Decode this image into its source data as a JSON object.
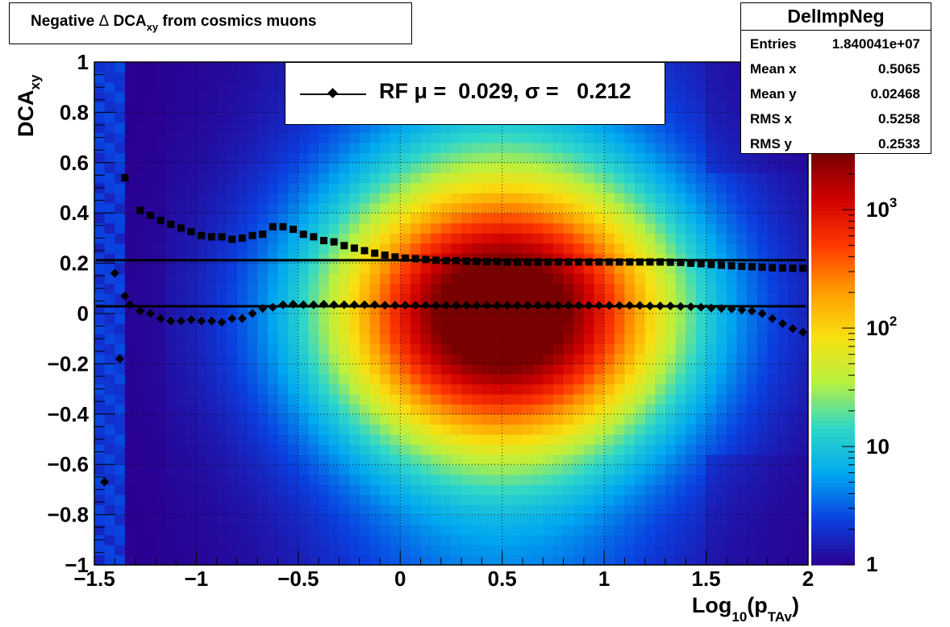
{
  "title": {
    "prefix": "Negative ",
    "delta": "Δ",
    "mid": " DCA",
    "sub": "xy",
    "suffix": " from cosmics muons"
  },
  "stats": {
    "name": "DelImpNeg",
    "rows": [
      {
        "label": "Entries",
        "value": "1.840041e+07"
      },
      {
        "label": "Mean x",
        "value": "0.5065"
      },
      {
        "label": "Mean y",
        "value": "0.02468"
      },
      {
        "label": "RMS x",
        "value": "0.5258"
      },
      {
        "label": "RMS y",
        "value": "0.2533"
      }
    ]
  },
  "legend": {
    "text": "RF μ =  0.029, σ =   0.212"
  },
  "axes": {
    "xlabel_main": "Log",
    "xlabel_sub1": "10",
    "xlabel_paren": "(p",
    "xlabel_sub2": "TAv",
    "xlabel_close": ")",
    "ylabel_main": "DCA",
    "ylabel_sub": "xy"
  },
  "chart_data": {
    "type": "heatmap",
    "xlim": [
      -1.5,
      2
    ],
    "ylim": [
      -1,
      1
    ],
    "xticks": [
      -1.5,
      -1,
      -0.5,
      0,
      0.5,
      1,
      1.5,
      2
    ],
    "xtick_labels": [
      "−1.5",
      "−1",
      "−0.5",
      "0",
      "0.5",
      "1",
      "1.5",
      "2"
    ],
    "yticks": [
      -1,
      -0.8,
      -0.6,
      -0.4,
      -0.2,
      0,
      0.2,
      0.4,
      0.6,
      0.8,
      1
    ],
    "ytick_labels": [
      "−1",
      "−0.8",
      "−0.6",
      "−0.4",
      "−0.2",
      "0",
      "0.2",
      "0.4",
      "0.6",
      "0.8",
      "1"
    ],
    "grid": true,
    "colorbar": {
      "scale": "log",
      "range": [
        1,
        3000
      ],
      "tick_labels": [
        "1",
        "10",
        "10²",
        "10³"
      ],
      "tick_values": [
        1,
        10,
        100,
        1000
      ],
      "colors": [
        "#2a0090",
        "#0a40e0",
        "#00a8f0",
        "#30d8c8",
        "#b8f040",
        "#f8e010",
        "#ff9a00",
        "#ff3800",
        "#d00000",
        "#780000"
      ]
    },
    "density_peak": {
      "x": 0.5,
      "y": 0.0
    },
    "mean_series": {
      "name": "RF",
      "marker": "diamond",
      "x": [
        -1.45,
        -1.4,
        -1.375,
        -1.35,
        -1.325,
        -1.275,
        -1.225,
        -1.175,
        -1.125,
        -1.075,
        -1.025,
        -0.975,
        -0.925,
        -0.875,
        -0.825,
        -0.775,
        -0.725,
        -0.675,
        -0.625,
        -0.575,
        -0.525,
        -0.475,
        -0.425,
        -0.375,
        -0.325,
        -0.275,
        -0.225,
        -0.175,
        -0.125,
        -0.075,
        -0.025,
        0.025,
        0.075,
        0.125,
        0.175,
        0.225,
        0.275,
        0.325,
        0.375,
        0.425,
        0.475,
        0.525,
        0.575,
        0.625,
        0.675,
        0.725,
        0.775,
        0.825,
        0.875,
        0.925,
        0.975,
        1.025,
        1.075,
        1.125,
        1.175,
        1.225,
        1.275,
        1.325,
        1.375,
        1.425,
        1.475,
        1.525,
        1.575,
        1.625,
        1.675,
        1.725,
        1.775,
        1.825,
        1.875,
        1.925,
        1.975
      ],
      "y": [
        -0.67,
        0.16,
        -0.18,
        0.07,
        0.035,
        0.01,
        0.0,
        -0.02,
        -0.03,
        -0.03,
        -0.025,
        -0.03,
        -0.03,
        -0.035,
        -0.02,
        -0.02,
        0.0,
        0.02,
        0.025,
        0.035,
        0.037,
        0.035,
        0.035,
        0.037,
        0.035,
        0.035,
        0.035,
        0.035,
        0.035,
        0.033,
        0.033,
        0.033,
        0.033,
        0.033,
        0.032,
        0.032,
        0.032,
        0.032,
        0.032,
        0.032,
        0.032,
        0.032,
        0.032,
        0.032,
        0.032,
        0.032,
        0.032,
        0.032,
        0.032,
        0.032,
        0.032,
        0.032,
        0.032,
        0.032,
        0.032,
        0.03,
        0.03,
        0.03,
        0.028,
        0.027,
        0.025,
        0.022,
        0.02,
        0.018,
        0.015,
        0.01,
        0.0,
        -0.02,
        -0.04,
        -0.06,
        -0.075
      ]
    },
    "sigma_series": {
      "marker": "square",
      "x": [
        -1.35,
        -1.275,
        -1.225,
        -1.175,
        -1.125,
        -1.075,
        -1.025,
        -0.975,
        -0.925,
        -0.875,
        -0.825,
        -0.775,
        -0.725,
        -0.675,
        -0.625,
        -0.575,
        -0.525,
        -0.475,
        -0.425,
        -0.375,
        -0.325,
        -0.275,
        -0.225,
        -0.175,
        -0.125,
        -0.075,
        -0.025,
        0.025,
        0.075,
        0.125,
        0.175,
        0.225,
        0.275,
        0.325,
        0.375,
        0.425,
        0.475,
        0.525,
        0.575,
        0.625,
        0.675,
        0.725,
        0.775,
        0.825,
        0.875,
        0.925,
        0.975,
        1.025,
        1.075,
        1.125,
        1.175,
        1.225,
        1.275,
        1.325,
        1.375,
        1.425,
        1.475,
        1.525,
        1.575,
        1.625,
        1.675,
        1.725,
        1.775,
        1.825,
        1.875,
        1.925,
        1.975
      ],
      "y": [
        0.54,
        0.41,
        0.39,
        0.37,
        0.355,
        0.34,
        0.325,
        0.31,
        0.305,
        0.305,
        0.295,
        0.3,
        0.31,
        0.315,
        0.345,
        0.345,
        0.335,
        0.315,
        0.305,
        0.29,
        0.285,
        0.27,
        0.26,
        0.25,
        0.24,
        0.232,
        0.225,
        0.22,
        0.218,
        0.215,
        0.212,
        0.21,
        0.21,
        0.208,
        0.207,
        0.206,
        0.206,
        0.205,
        0.205,
        0.205,
        0.205,
        0.205,
        0.205,
        0.205,
        0.205,
        0.205,
        0.205,
        0.205,
        0.205,
        0.205,
        0.205,
        0.205,
        0.205,
        0.204,
        0.203,
        0.2,
        0.198,
        0.195,
        0.192,
        0.19,
        0.188,
        0.186,
        0.184,
        0.182,
        0.181,
        0.18,
        0.18
      ]
    },
    "fit_lines": [
      {
        "label": "mu",
        "y": 0.029
      },
      {
        "label": "sigma",
        "y": 0.212
      }
    ]
  }
}
